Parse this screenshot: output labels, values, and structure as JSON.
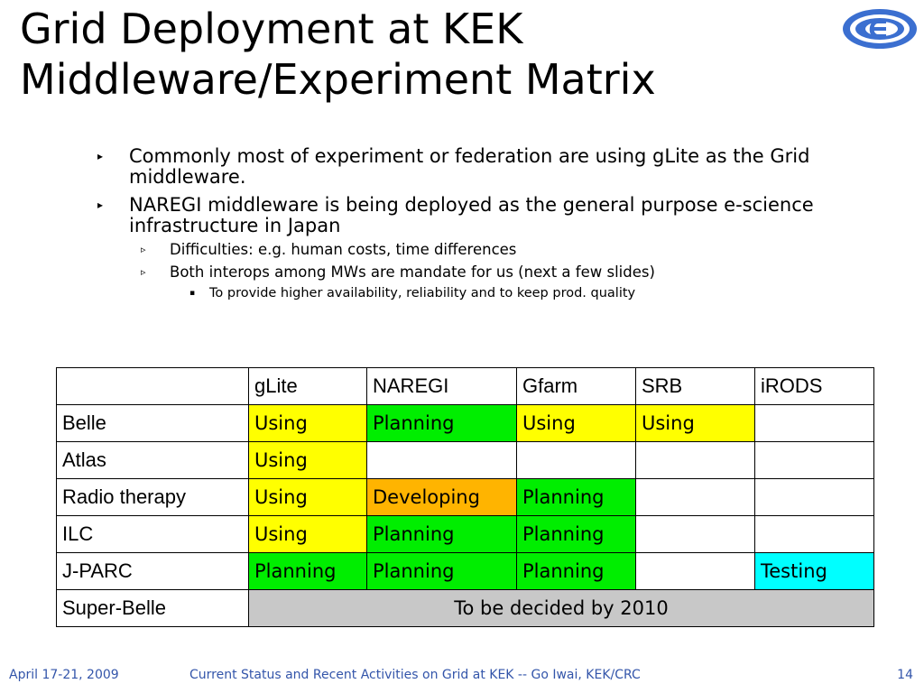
{
  "slide": {
    "title_line1": "Grid Deployment at KEK",
    "title_line2": "Middleware/Experiment Matrix"
  },
  "bullets": [
    {
      "text": "Commonly most of experiment or federation are using gLite as the Grid middleware."
    },
    {
      "text": "NAREGI middleware is being deployed as the general purpose e-science infrastructure in Japan",
      "children": [
        {
          "text": "Difficulties: e.g. human costs, time differences"
        },
        {
          "text": "Both interops among MWs are mandate for us (next a few slides)",
          "children": [
            {
              "text": "To provide higher availability, reliability and to keep prod. quality"
            }
          ]
        }
      ]
    }
  ],
  "table": {
    "columns": [
      "",
      "gLite",
      "NAREGI",
      "Gfarm",
      "SRB",
      "iRODS"
    ],
    "rows": [
      {
        "label": "Belle",
        "cells": [
          "Using",
          "Planning",
          "Using",
          "Using",
          ""
        ]
      },
      {
        "label": "Atlas",
        "cells": [
          "Using",
          "",
          "",
          "",
          ""
        ]
      },
      {
        "label": "Radio therapy",
        "cells": [
          "Using",
          "Developing",
          "Planning",
          "",
          ""
        ]
      },
      {
        "label": "ILC",
        "cells": [
          "Using",
          "Planning",
          "Planning",
          "",
          ""
        ]
      },
      {
        "label": "J-PARC",
        "cells": [
          "Planning",
          "Planning",
          "Planning",
          "",
          "Testing"
        ]
      },
      {
        "label": "Super-Belle",
        "merged": "To be decided by 2010"
      }
    ],
    "status_colors": {
      "Using": "#ffff00",
      "Planning": "#00ee00",
      "Developing": "#ffb400",
      "Testing": "#00ffff",
      "undecided": "#c8c8c8"
    }
  },
  "footer": {
    "date": "April 17-21, 2009",
    "center": "Current Status and Recent Activities on Grid at KEK -- Go Iwai, KEK/CRC",
    "page": "14"
  },
  "logo": {
    "icon": "kek-logo-icon"
  }
}
